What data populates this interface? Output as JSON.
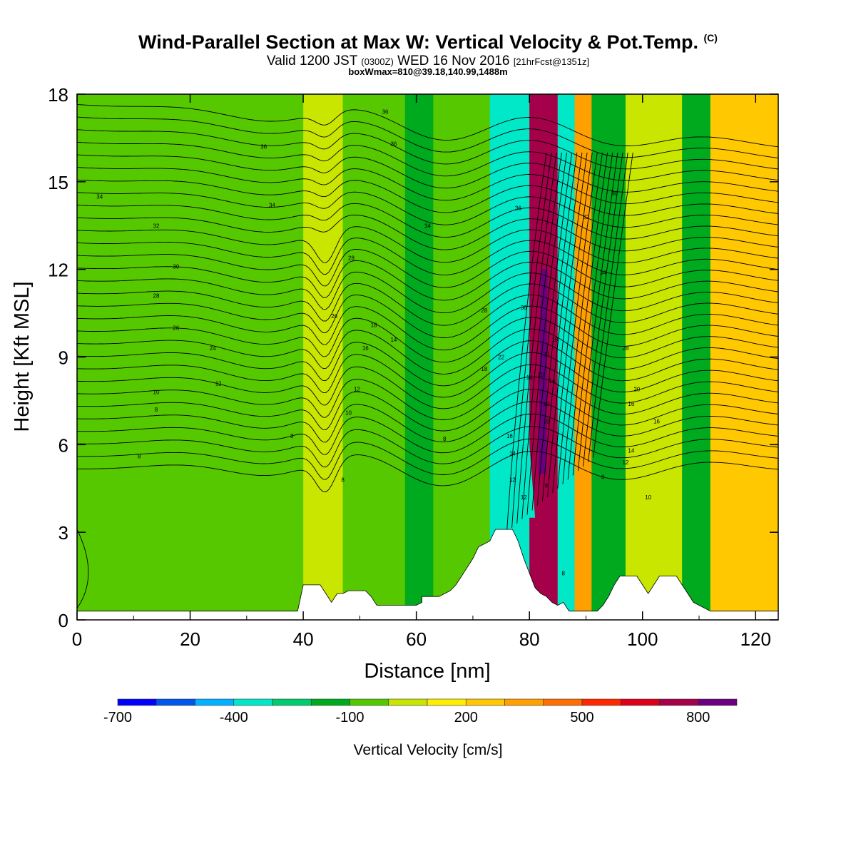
{
  "title": {
    "main": "Wind-Parallel Section at Max W: Vertical Velocity & Pot.Temp.",
    "copyright": "(C)",
    "valid_prefix": "Valid 1200 JST",
    "valid_utc": "(0300Z)",
    "valid_date": "WED 16 Nov 2016",
    "forecast": "[21hrFcst@1351z]",
    "boxinfo": "boxWmax=810@39.18,140.99,1488m"
  },
  "chart_data": {
    "type": "heatmap",
    "xlabel": "Distance [nm]",
    "ylabel": "Height [Kft MSL]",
    "xlim": [
      0,
      124
    ],
    "ylim": [
      0,
      18
    ],
    "x_ticks": [
      0,
      20,
      40,
      60,
      80,
      100,
      120
    ],
    "y_ticks": [
      0,
      3,
      6,
      9,
      12,
      15,
      18
    ],
    "colorbar": {
      "label": "Vertical Velocity [cm/s]",
      "range": [
        -700,
        900
      ],
      "step": 100,
      "tick_labels": [
        "-700",
        "-400",
        "-100",
        "200",
        "500",
        "800"
      ],
      "tick_values": [
        -700,
        -400,
        -100,
        200,
        500,
        800
      ],
      "colors": [
        "#0000ff",
        "#0055ee",
        "#00b2ff",
        "#00e8c8",
        "#00cc6e",
        "#00aa1e",
        "#55c800",
        "#c8e600",
        "#ffee00",
        "#ffc800",
        "#ffa000",
        "#ff6e00",
        "#ff2800",
        "#dd0018",
        "#a5004a",
        "#6a0080"
      ]
    },
    "terrain_kft": [
      [
        0,
        0.3
      ],
      [
        39,
        0.3
      ],
      [
        40,
        1.2
      ],
      [
        43,
        1.2
      ],
      [
        44,
        0.9
      ],
      [
        45,
        0.6
      ],
      [
        46,
        0.9
      ],
      [
        47,
        0.9
      ],
      [
        48,
        1.0
      ],
      [
        51,
        1.0
      ],
      [
        52,
        0.8
      ],
      [
        53,
        0.5
      ],
      [
        60,
        0.5
      ],
      [
        61,
        0.6
      ],
      [
        61,
        0.8
      ],
      [
        64,
        0.8
      ],
      [
        65,
        0.9
      ],
      [
        66,
        1.0
      ],
      [
        67,
        1.2
      ],
      [
        68,
        1.5
      ],
      [
        69,
        1.8
      ],
      [
        70,
        2.1
      ],
      [
        71,
        2.5
      ],
      [
        73,
        2.7
      ],
      [
        74,
        3.1
      ],
      [
        77,
        3.1
      ],
      [
        78,
        2.7
      ],
      [
        79,
        2.1
      ],
      [
        80,
        1.6
      ],
      [
        81,
        1.1
      ],
      [
        82,
        0.9
      ],
      [
        83,
        0.8
      ],
      [
        84,
        0.6
      ],
      [
        85,
        0.5
      ],
      [
        86,
        0.6
      ],
      [
        87,
        0.3
      ],
      [
        92,
        0.3
      ],
      [
        93,
        0.5
      ],
      [
        94,
        0.8
      ],
      [
        95,
        1.2
      ],
      [
        96,
        1.5
      ],
      [
        99,
        1.5
      ],
      [
        100,
        1.2
      ],
      [
        101,
        0.9
      ],
      [
        102,
        1.2
      ],
      [
        103,
        1.5
      ],
      [
        106,
        1.5
      ],
      [
        107,
        1.2
      ],
      [
        108,
        0.9
      ],
      [
        109,
        0.6
      ],
      [
        112,
        0.3
      ],
      [
        124,
        0.3
      ]
    ],
    "w_columns": [
      {
        "x": [
          0,
          14
        ],
        "w": -30
      },
      {
        "x": [
          14,
          40
        ],
        "w": -80
      },
      {
        "x": [
          40,
          47
        ],
        "w": 50
      },
      {
        "x": [
          47,
          58
        ],
        "w": -90
      },
      {
        "x": [
          58,
          63
        ],
        "w": -150
      },
      {
        "x": [
          63,
          73
        ],
        "w": -80
      },
      {
        "x": [
          73,
          80
        ],
        "w": -330
      },
      {
        "x": [
          80,
          85
        ],
        "w": 700
      },
      {
        "x": [
          85,
          88
        ],
        "w": -370
      },
      {
        "x": [
          88,
          91
        ],
        "w": 300
      },
      {
        "x": [
          91,
          97
        ],
        "w": -150
      },
      {
        "x": [
          97,
          107
        ],
        "w": 80
      },
      {
        "x": [
          107,
          112
        ],
        "w": -120
      },
      {
        "x": [
          112,
          124
        ],
        "w": 230
      }
    ],
    "contour_labels": [
      {
        "text": "36",
        "x": 54.5,
        "y": 17.4
      },
      {
        "text": "36",
        "x": 33,
        "y": 16.2
      },
      {
        "text": "36",
        "x": 56,
        "y": 16.3
      },
      {
        "text": "34",
        "x": 4,
        "y": 14.5
      },
      {
        "text": "34",
        "x": 34.5,
        "y": 14.2
      },
      {
        "text": "36",
        "x": 78,
        "y": 14.1
      },
      {
        "text": "36",
        "x": 95,
        "y": 14.6
      },
      {
        "text": "32",
        "x": 14,
        "y": 13.5
      },
      {
        "text": "34",
        "x": 62,
        "y": 13.5
      },
      {
        "text": "32",
        "x": 90,
        "y": 13.8
      },
      {
        "text": "30",
        "x": 17.5,
        "y": 12.1
      },
      {
        "text": "28",
        "x": 48.5,
        "y": 12.4
      },
      {
        "text": "28",
        "x": 14,
        "y": 11.1
      },
      {
        "text": "34",
        "x": 93,
        "y": 11.9
      },
      {
        "text": "28",
        "x": 72,
        "y": 10.6
      },
      {
        "text": "30",
        "x": 79,
        "y": 10.7
      },
      {
        "text": "26",
        "x": 17.5,
        "y": 10.0
      },
      {
        "text": "26",
        "x": 45.5,
        "y": 10.4
      },
      {
        "text": "18",
        "x": 52.5,
        "y": 10.1
      },
      {
        "text": "24",
        "x": 24,
        "y": 9.3
      },
      {
        "text": "14",
        "x": 56,
        "y": 9.6
      },
      {
        "text": "16",
        "x": 51,
        "y": 9.3
      },
      {
        "text": "20",
        "x": 83,
        "y": 9.1
      },
      {
        "text": "18",
        "x": 84.5,
        "y": 9.6
      },
      {
        "text": "28",
        "x": 97,
        "y": 9.3
      },
      {
        "text": "22",
        "x": 75,
        "y": 9.0
      },
      {
        "text": "18",
        "x": 72,
        "y": 8.6
      },
      {
        "text": "12",
        "x": 25,
        "y": 8.1
      },
      {
        "text": "14",
        "x": 80,
        "y": 8.3
      },
      {
        "text": "20",
        "x": 82,
        "y": 8.4
      },
      {
        "text": "14",
        "x": 84,
        "y": 8.2
      },
      {
        "text": "12",
        "x": 49.5,
        "y": 7.9
      },
      {
        "text": "20",
        "x": 99,
        "y": 7.9
      },
      {
        "text": "10",
        "x": 14,
        "y": 7.8
      },
      {
        "text": "10",
        "x": 83,
        "y": 7.4
      },
      {
        "text": "16",
        "x": 98,
        "y": 7.4
      },
      {
        "text": "8",
        "x": 14,
        "y": 7.2
      },
      {
        "text": "10",
        "x": 48,
        "y": 7.1
      },
      {
        "text": "10",
        "x": 83,
        "y": 6.8
      },
      {
        "text": "16",
        "x": 102.5,
        "y": 6.8
      },
      {
        "text": "8",
        "x": 38,
        "y": 6.3
      },
      {
        "text": "8",
        "x": 65,
        "y": 6.2
      },
      {
        "text": "16",
        "x": 76.5,
        "y": 6.3
      },
      {
        "text": "14",
        "x": 77,
        "y": 5.7
      },
      {
        "text": "14",
        "x": 98,
        "y": 5.8
      },
      {
        "text": "8",
        "x": 11,
        "y": 5.6
      },
      {
        "text": "12",
        "x": 97,
        "y": 5.4
      },
      {
        "text": "8",
        "x": 93,
        "y": 4.9
      },
      {
        "text": "8",
        "x": 47,
        "y": 4.8
      },
      {
        "text": "12",
        "x": 77,
        "y": 4.8
      },
      {
        "text": "12",
        "x": 79,
        "y": 4.2
      },
      {
        "text": "10",
        "x": 101,
        "y": 4.2
      },
      {
        "text": "8",
        "x": 83,
        "y": 4.6
      },
      {
        "text": "8",
        "x": 86,
        "y": 1.6
      }
    ]
  }
}
